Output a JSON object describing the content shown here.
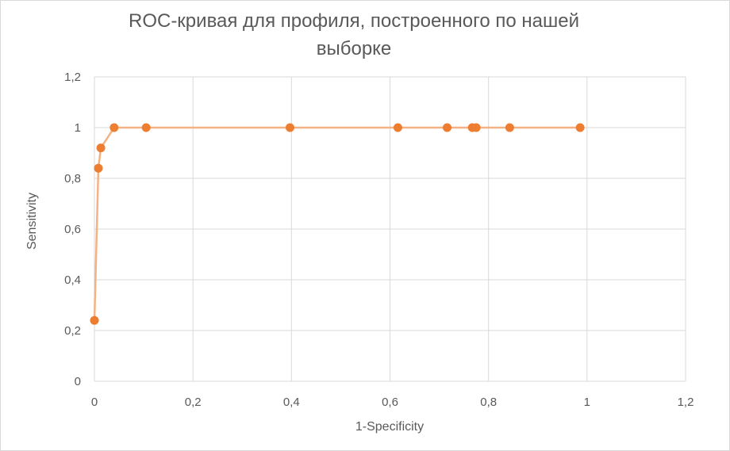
{
  "chart_data": {
    "type": "scatter",
    "title_lines": [
      "ROC-кривая для профиля, построенного по нашей",
      "выборке"
    ],
    "xlabel": "1-Specificity",
    "ylabel": "Sensitivity",
    "xlim": [
      0,
      1.2
    ],
    "ylim": [
      0,
      1.2
    ],
    "x_ticks": [
      "0",
      "0,2",
      "0,4",
      "0,6",
      "0,8",
      "1",
      "1,2"
    ],
    "y_ticks": [
      "0",
      "0,2",
      "0,4",
      "0,6",
      "0,8",
      "1",
      "1,2"
    ],
    "x_tick_values": [
      0,
      0.2,
      0.4,
      0.6,
      0.8,
      1.0,
      1.2
    ],
    "y_tick_values": [
      0,
      0.2,
      0.4,
      0.6,
      0.8,
      1.0,
      1.2
    ],
    "grid": true,
    "legend": "none",
    "colors": {
      "line": "#f4b183",
      "marker": "#ed7d31",
      "grid": "#d9d9d9",
      "text": "#595959"
    },
    "series": [
      {
        "x": [
          0.0,
          0.008,
          0.013,
          0.04,
          0.105,
          0.397,
          0.616,
          0.716,
          0.767,
          0.775,
          0.843,
          0.986
        ],
        "y": [
          0.24,
          0.84,
          0.92,
          1.0,
          1.0,
          1.0,
          1.0,
          1.0,
          1.0,
          1.0,
          1.0,
          1.0
        ]
      }
    ]
  }
}
